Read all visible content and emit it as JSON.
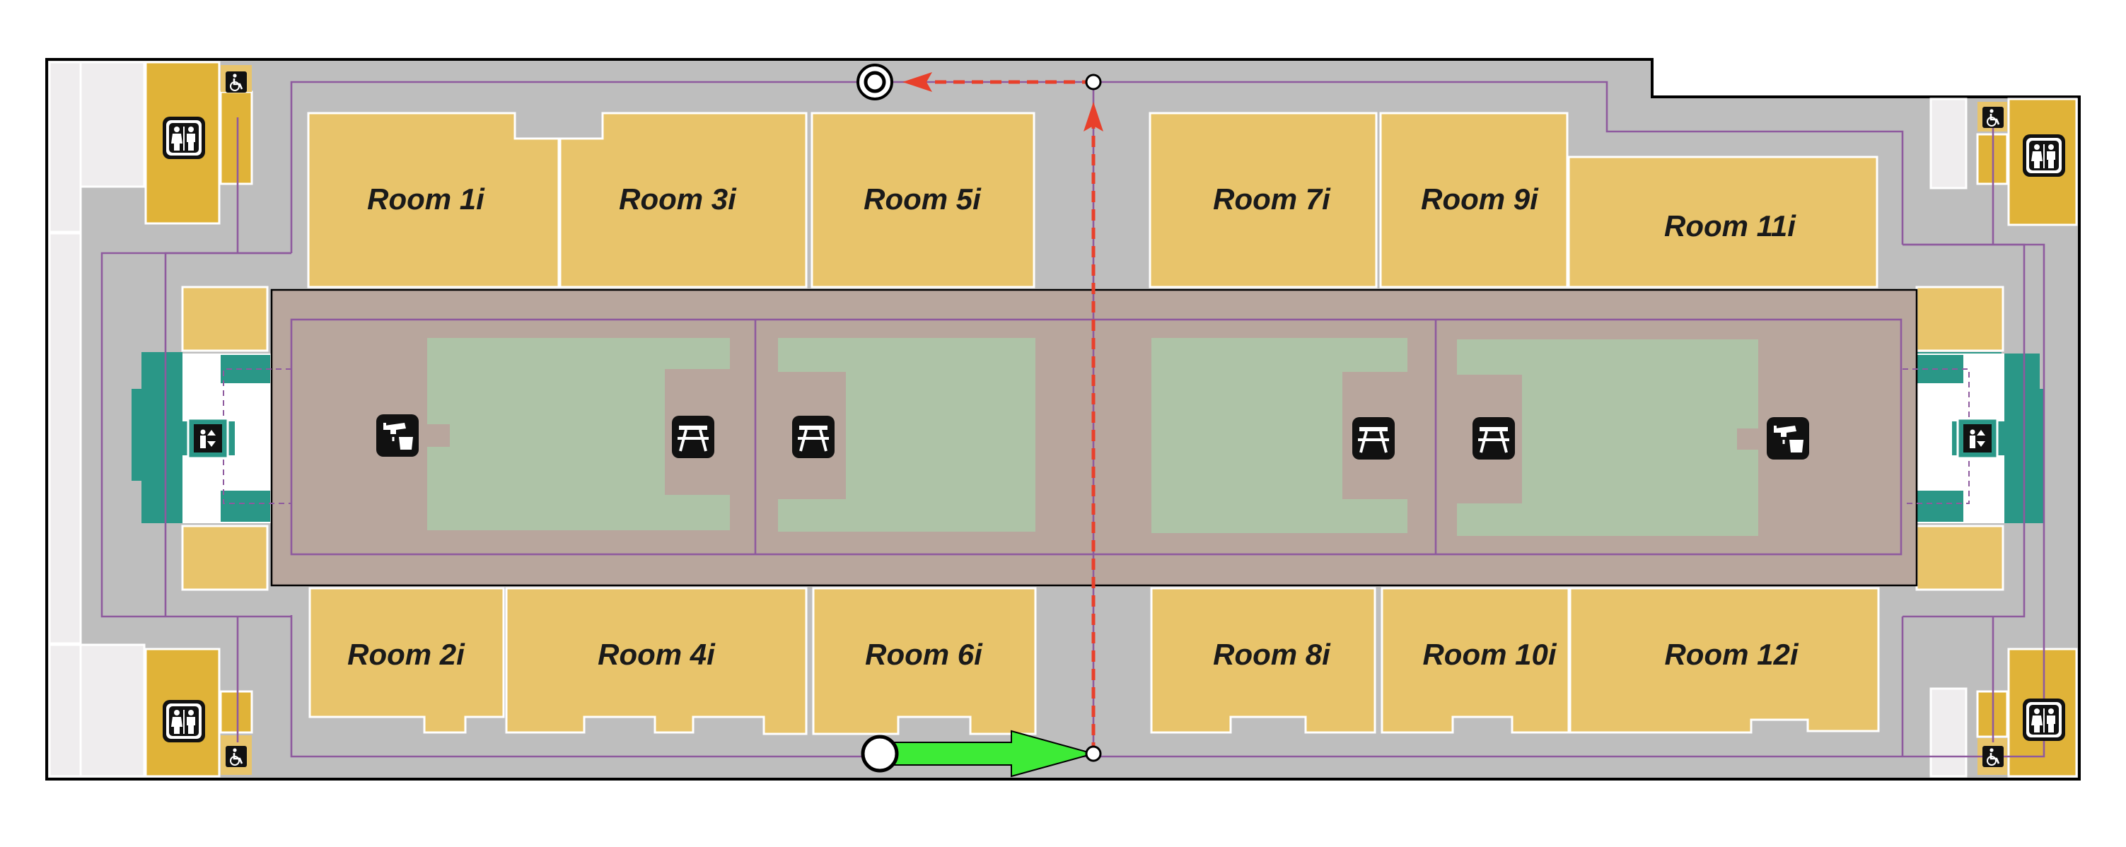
{
  "colors": {
    "room_fill": "#E8C46B",
    "corridor_fill": "#BEBEBE",
    "atrium_fill": "#B8A69D",
    "lawn_fill": "#AEC3A7",
    "stair_fill": "#2A9787",
    "restroom_fill": "#E0B338",
    "path_line": "#8E5A9E",
    "route_dashed": "#E8402B",
    "route_start_arrow": "#3DEB36",
    "outline": "#000000"
  },
  "rooms": [
    {
      "label": "Room 1i"
    },
    {
      "label": "Room 3i"
    },
    {
      "label": "Room 5i"
    },
    {
      "label": "Room 7i"
    },
    {
      "label": "Room 9i"
    },
    {
      "label": "Room 11i"
    },
    {
      "label": "Room 2i"
    },
    {
      "label": "Room 4i"
    },
    {
      "label": "Room 6i"
    },
    {
      "label": "Room 8i"
    },
    {
      "label": "Room 10i"
    },
    {
      "label": "Room 12i"
    }
  ],
  "icons": {
    "restroom": "restroom-icon",
    "accessible": "wheelchair-icon",
    "elevator": "elevator-icon",
    "sink": "sink-icon",
    "picnic": "picnic-table-icon",
    "destination": "destination-marker-icon",
    "start": "start-marker-icon"
  }
}
